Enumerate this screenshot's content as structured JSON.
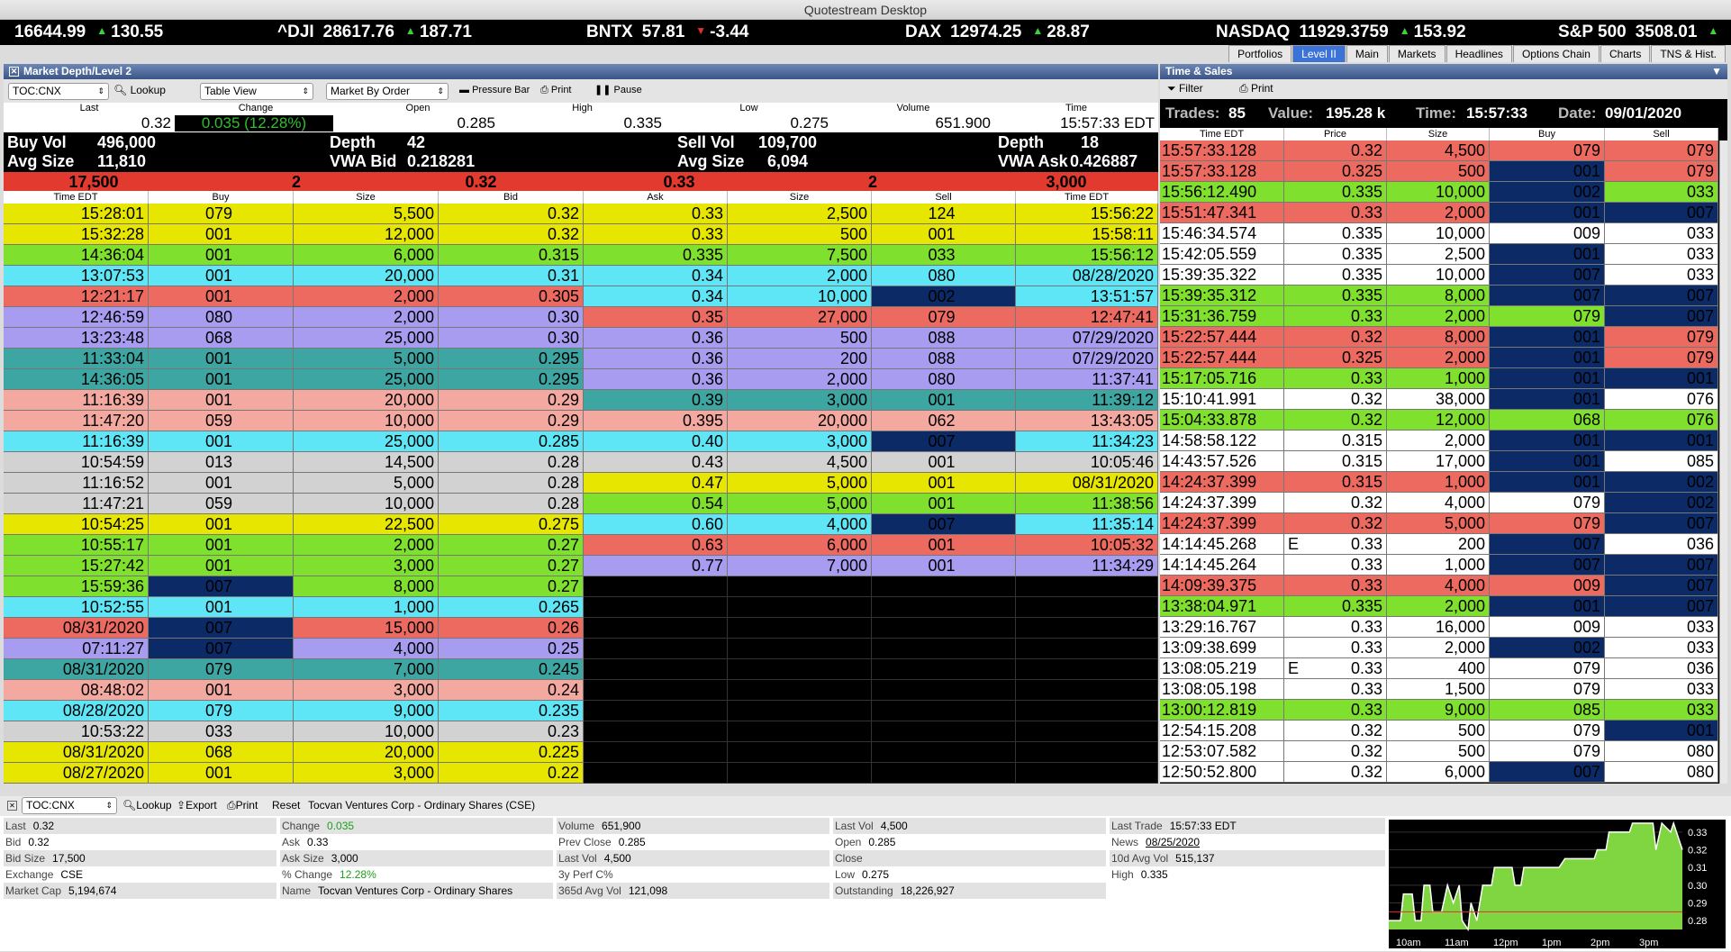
{
  "window": {
    "title": "Quotestream Desktop"
  },
  "ticker": [
    {
      "sym": "",
      "price": "16644.99",
      "dir": "up",
      "chg": "130.55"
    },
    {
      "sym": "^DJI",
      "price": "28617.76",
      "dir": "up",
      "chg": "187.71"
    },
    {
      "sym": "BNTX",
      "price": "57.81",
      "dir": "dn",
      "chg": "-3.44"
    },
    {
      "sym": "DAX",
      "price": "12974.25",
      "dir": "up",
      "chg": "28.87"
    },
    {
      "sym": "NASDAQ",
      "price": "11929.3759",
      "dir": "up",
      "chg": "153.92"
    },
    {
      "sym": "S&P 500",
      "price": "3508.01",
      "dir": "up",
      "chg": ""
    }
  ],
  "tabs": [
    "Portfolios",
    "Level II",
    "Main",
    "Markets",
    "Headlines",
    "Options Chain",
    "Charts",
    "TNS & Hist."
  ],
  "level2": {
    "title": "Market Depth/Level 2",
    "symbol": "TOC:CNX",
    "lookup": "Lookup",
    "view": "Table View",
    "mode": "Market By Order",
    "pressure": "Pressure Bar",
    "print": "Print",
    "pause": "Pause",
    "quote": {
      "labels": [
        "Last",
        "Change",
        "Open",
        "High",
        "Low",
        "Volume",
        "Time"
      ],
      "values": [
        "0.32",
        "0.035 (12.28%)",
        "0.285",
        "0.335",
        "0.275",
        "651.900",
        "15:57:33 EDT"
      ]
    },
    "stats": {
      "buy_vol_label": "Buy Vol",
      "buy_vol": "496,000",
      "avg_size_label": "Avg Size",
      "avg_size_buy": "11,810",
      "depth_label": "Depth",
      "depth_buy": "42",
      "vwa_bid_label": "VWA Bid",
      "vwa_bid": "0.218281",
      "sell_vol_label": "Sell Vol",
      "sell_vol": "109,700",
      "avg_size_sell": "6,094",
      "depth_sell": "18",
      "vwa_ask_label": "VWA Ask",
      "vwa_ask": "0.426887"
    },
    "best": [
      "17,500",
      "2",
      "0.32",
      "0.33",
      "2",
      "3,000"
    ],
    "headers": [
      "Time EDT",
      "Buy",
      "Size",
      "Bid",
      "Ask",
      "Size",
      "Sell",
      "Time EDT"
    ],
    "bids": [
      [
        "15:28:01",
        "079",
        "5,500",
        "0.32",
        "yellow"
      ],
      [
        "15:32:28",
        "001",
        "12,000",
        "0.32",
        "yellow"
      ],
      [
        "14:36:04",
        "001",
        "6,000",
        "0.315",
        "green"
      ],
      [
        "13:07:53",
        "001",
        "20,000",
        "0.31",
        "cyan"
      ],
      [
        "12:21:17",
        "001",
        "2,000",
        "0.305",
        "red"
      ],
      [
        "12:46:59",
        "080",
        "2,000",
        "0.30",
        "purple"
      ],
      [
        "13:23:48",
        "068",
        "25,000",
        "0.30",
        "purple"
      ],
      [
        "11:33:04",
        "001",
        "5,000",
        "0.295",
        "teal"
      ],
      [
        "14:36:05",
        "001",
        "25,000",
        "0.295",
        "teal"
      ],
      [
        "11:16:39",
        "001",
        "20,000",
        "0.29",
        "pink"
      ],
      [
        "11:47:20",
        "059",
        "10,000",
        "0.29",
        "pink"
      ],
      [
        "11:16:39",
        "001",
        "25,000",
        "0.285",
        "cyan"
      ],
      [
        "10:54:59",
        "013",
        "14,500",
        "0.28",
        "gray"
      ],
      [
        "11:16:52",
        "001",
        "5,000",
        "0.28",
        "gray"
      ],
      [
        "11:47:21",
        "059",
        "10,000",
        "0.28",
        "gray"
      ],
      [
        "10:54:25",
        "001",
        "22,500",
        "0.275",
        "yellow"
      ],
      [
        "10:55:17",
        "001",
        "2,000",
        "0.27",
        "green"
      ],
      [
        "15:27:42",
        "001",
        "3,000",
        "0.27",
        "green"
      ],
      [
        "15:59:36",
        "007",
        "8,000",
        "0.27",
        "green"
      ],
      [
        "10:52:55",
        "001",
        "1,000",
        "0.265",
        "cyan"
      ],
      [
        "08/31/2020",
        "007",
        "15,000",
        "0.26",
        "red"
      ],
      [
        "07:11:27",
        "007",
        "4,000",
        "0.25",
        "purple"
      ],
      [
        "08/31/2020",
        "079",
        "7,000",
        "0.245",
        "teal"
      ],
      [
        "08:48:02",
        "001",
        "3,000",
        "0.24",
        "pink"
      ],
      [
        "08/28/2020",
        "079",
        "9,000",
        "0.235",
        "cyan"
      ],
      [
        "10:53:22",
        "033",
        "10,000",
        "0.23",
        "gray"
      ],
      [
        "08/31/2020",
        "068",
        "20,000",
        "0.225",
        "yellow"
      ],
      [
        "08/27/2020",
        "001",
        "3,000",
        "0.22",
        "yellow"
      ]
    ],
    "asks": [
      [
        "0.33",
        "2,500",
        "124",
        "15:56:22",
        "yellow"
      ],
      [
        "0.33",
        "500",
        "001",
        "15:58:11",
        "yellow"
      ],
      [
        "0.335",
        "7,500",
        "033",
        "15:56:12",
        "green"
      ],
      [
        "0.34",
        "2,000",
        "080",
        "08/28/2020",
        "cyan"
      ],
      [
        "0.34",
        "10,000",
        "002",
        "13:51:57",
        "cyan"
      ],
      [
        "0.35",
        "27,000",
        "079",
        "12:47:41",
        "red"
      ],
      [
        "0.36",
        "500",
        "088",
        "07/29/2020",
        "purple"
      ],
      [
        "0.36",
        "200",
        "088",
        "07/29/2020",
        "purple"
      ],
      [
        "0.36",
        "2,000",
        "080",
        "11:37:41",
        "purple"
      ],
      [
        "0.39",
        "3,000",
        "001",
        "11:39:12",
        "teal"
      ],
      [
        "0.395",
        "20,000",
        "062",
        "13:43:05",
        "pink"
      ],
      [
        "0.40",
        "3,000",
        "007",
        "11:34:23",
        "cyan"
      ],
      [
        "0.43",
        "4,500",
        "001",
        "10:05:46",
        "gray"
      ],
      [
        "0.47",
        "5,000",
        "001",
        "08/31/2020",
        "yellow"
      ],
      [
        "0.54",
        "5,000",
        "001",
        "11:38:56",
        "green"
      ],
      [
        "0.60",
        "4,000",
        "007",
        "11:35:14",
        "cyan"
      ],
      [
        "0.63",
        "6,000",
        "001",
        "10:05:32",
        "red"
      ],
      [
        "0.77",
        "7,000",
        "001",
        "11:34:29",
        "purple"
      ]
    ]
  },
  "tns": {
    "title": "Time & Sales",
    "filter": "Filter",
    "print": "Print",
    "summary": {
      "trades_label": "Trades:",
      "trades": "85",
      "value_label": "Value:",
      "value": "195.28 k",
      "time_label": "Time:",
      "time": "15:57:33",
      "date_label": "Date:",
      "date": "09/01/2020"
    },
    "headers": [
      "Time EDT",
      "Price",
      "Size",
      "Buy",
      "Sell"
    ],
    "rows": [
      [
        "15:57:33.128",
        "",
        "0.32",
        "4,500",
        "079",
        "079",
        "red",
        "r",
        "r"
      ],
      [
        "15:57:33.128",
        "",
        "0.325",
        "500",
        "001",
        "079",
        "red",
        "n",
        "r"
      ],
      [
        "15:56:12.490",
        "",
        "0.335",
        "10,000",
        "002",
        "033",
        "green",
        "n",
        "g"
      ],
      [
        "15:51:47.341",
        "",
        "0.33",
        "2,000",
        "001",
        "007",
        "red",
        "n",
        "n"
      ],
      [
        "15:46:34.574",
        "",
        "0.335",
        "10,000",
        "009",
        "033",
        "white",
        "w",
        "w"
      ],
      [
        "15:42:05.559",
        "",
        "0.335",
        "2,500",
        "001",
        "033",
        "white",
        "n",
        "w"
      ],
      [
        "15:39:35.322",
        "",
        "0.335",
        "10,000",
        "007",
        "033",
        "white",
        "n",
        "w"
      ],
      [
        "15:39:35.312",
        "",
        "0.335",
        "8,000",
        "007",
        "007",
        "green",
        "n",
        "n"
      ],
      [
        "15:31:36.759",
        "",
        "0.33",
        "2,000",
        "079",
        "007",
        "green",
        "g",
        "n"
      ],
      [
        "15:22:57.444",
        "",
        "0.32",
        "8,000",
        "001",
        "079",
        "red",
        "n",
        "r"
      ],
      [
        "15:22:57.444",
        "",
        "0.325",
        "2,000",
        "001",
        "079",
        "red",
        "n",
        "r"
      ],
      [
        "15:17:05.716",
        "",
        "0.33",
        "1,000",
        "001",
        "001",
        "green",
        "n",
        "n"
      ],
      [
        "15:10:41.991",
        "",
        "0.32",
        "38,000",
        "001",
        "076",
        "white",
        "n",
        "w"
      ],
      [
        "15:04:33.878",
        "",
        "0.32",
        "12,000",
        "068",
        "076",
        "green",
        "g",
        "g"
      ],
      [
        "14:58:58.122",
        "",
        "0.315",
        "2,000",
        "001",
        "001",
        "white",
        "n",
        "n"
      ],
      [
        "14:43:57.526",
        "",
        "0.315",
        "17,000",
        "001",
        "085",
        "white",
        "n",
        "w"
      ],
      [
        "14:24:37.399",
        "",
        "0.315",
        "1,000",
        "001",
        "002",
        "red",
        "n",
        "n"
      ],
      [
        "14:24:37.399",
        "",
        "0.32",
        "4,000",
        "079",
        "002",
        "white",
        "w",
        "n"
      ],
      [
        "14:24:37.399",
        "",
        "0.32",
        "5,000",
        "079",
        "007",
        "red",
        "r",
        "n"
      ],
      [
        "14:14:45.268",
        "E",
        "0.33",
        "200",
        "007",
        "036",
        "white",
        "n",
        "w"
      ],
      [
        "14:14:45.264",
        "",
        "0.33",
        "1,000",
        "007",
        "007",
        "white",
        "n",
        "n"
      ],
      [
        "14:09:39.375",
        "",
        "0.33",
        "4,000",
        "009",
        "007",
        "red",
        "r",
        "n"
      ],
      [
        "13:38:04.971",
        "",
        "0.335",
        "2,000",
        "001",
        "007",
        "green",
        "n",
        "n"
      ],
      [
        "13:29:16.767",
        "",
        "0.33",
        "16,000",
        "009",
        "033",
        "white",
        "w",
        "w"
      ],
      [
        "13:09:38.699",
        "",
        "0.33",
        "2,000",
        "002",
        "033",
        "white",
        "n",
        "w"
      ],
      [
        "13:08:05.219",
        "E",
        "0.33",
        "400",
        "079",
        "036",
        "white",
        "w",
        "w"
      ],
      [
        "13:08:05.198",
        "",
        "0.33",
        "1,500",
        "079",
        "033",
        "white",
        "w",
        "w"
      ],
      [
        "13:00:12.819",
        "",
        "0.33",
        "9,000",
        "085",
        "033",
        "green",
        "g",
        "g"
      ],
      [
        "12:54:15.208",
        "",
        "0.32",
        "500",
        "079",
        "001",
        "white",
        "w",
        "n"
      ],
      [
        "12:53:07.582",
        "",
        "0.32",
        "500",
        "079",
        "080",
        "white",
        "w",
        "w"
      ],
      [
        "12:50:52.800",
        "",
        "0.32",
        "6,000",
        "007",
        "080",
        "white",
        "n",
        "w"
      ]
    ]
  },
  "bottom": {
    "symbol": "TOC:CNX",
    "lookup": "Lookup",
    "export": "Export",
    "print": "Print",
    "reset": "Reset",
    "name": "Tocvan Ventures Corp - Ordinary Shares (CSE)",
    "cols": [
      [
        [
          "Last",
          "0.32"
        ],
        [
          "Bid",
          "0.32"
        ],
        [
          "Bid Size",
          "17,500"
        ],
        [
          "Exchange",
          "CSE"
        ],
        [
          "Market Cap",
          "5,194,674"
        ]
      ],
      [
        [
          "Change",
          "0.035"
        ],
        [
          "Ask",
          "0.33"
        ],
        [
          "Ask Size",
          "3,000"
        ],
        [
          "% Change",
          "12.28%"
        ],
        [
          "Name",
          "Tocvan Ventures Corp - Ordinary Shares"
        ]
      ],
      [
        [
          "Volume",
          "651,900"
        ],
        [
          "Prev Close",
          "0.285"
        ],
        [
          "Last Vol",
          "4,500"
        ],
        [
          "3y Perf C%",
          ""
        ],
        [
          "365d Avg Vol",
          "121,098"
        ]
      ],
      [
        [
          "Last Vol",
          "4,500"
        ],
        [
          "Open",
          "0.285"
        ],
        [
          "Close",
          ""
        ],
        [
          "Low",
          "0.275"
        ],
        [
          "Outstanding",
          "18,226,927"
        ]
      ],
      [
        [
          "Last Trade",
          "15:57:33 EDT"
        ],
        [
          "News",
          "08/25/2020"
        ],
        [
          "10d Avg Vol",
          "515,137"
        ],
        [
          "High",
          "0.335"
        ]
      ]
    ],
    "chart": {
      "y_ticks": [
        "0.33",
        "0.32",
        "0.31",
        "0.30",
        "0.29",
        "0.28"
      ],
      "x_ticks": [
        "10am",
        "11am",
        "12pm",
        "1pm",
        "2pm",
        "3pm"
      ],
      "ref_line": 0.285,
      "points": [
        [
          0,
          0.28
        ],
        [
          0.04,
          0.28
        ],
        [
          0.05,
          0.295
        ],
        [
          0.08,
          0.295
        ],
        [
          0.09,
          0.28
        ],
        [
          0.11,
          0.28
        ],
        [
          0.12,
          0.3
        ],
        [
          0.14,
          0.3
        ],
        [
          0.15,
          0.285
        ],
        [
          0.18,
          0.285
        ],
        [
          0.2,
          0.3
        ],
        [
          0.22,
          0.29
        ],
        [
          0.24,
          0.3
        ],
        [
          0.25,
          0.28
        ],
        [
          0.27,
          0.275
        ],
        [
          0.28,
          0.29
        ],
        [
          0.3,
          0.28
        ],
        [
          0.32,
          0.3
        ],
        [
          0.35,
          0.3
        ],
        [
          0.36,
          0.31
        ],
        [
          0.42,
          0.31
        ],
        [
          0.43,
          0.3
        ],
        [
          0.45,
          0.3
        ],
        [
          0.46,
          0.31
        ],
        [
          0.58,
          0.31
        ],
        [
          0.6,
          0.315
        ],
        [
          0.7,
          0.315
        ],
        [
          0.71,
          0.32
        ],
        [
          0.74,
          0.32
        ],
        [
          0.75,
          0.33
        ],
        [
          0.82,
          0.33
        ],
        [
          0.83,
          0.335
        ],
        [
          0.9,
          0.335
        ],
        [
          0.91,
          0.32
        ],
        [
          0.93,
          0.335
        ],
        [
          0.96,
          0.33
        ],
        [
          0.97,
          0.335
        ],
        [
          1,
          0.32
        ]
      ]
    }
  }
}
